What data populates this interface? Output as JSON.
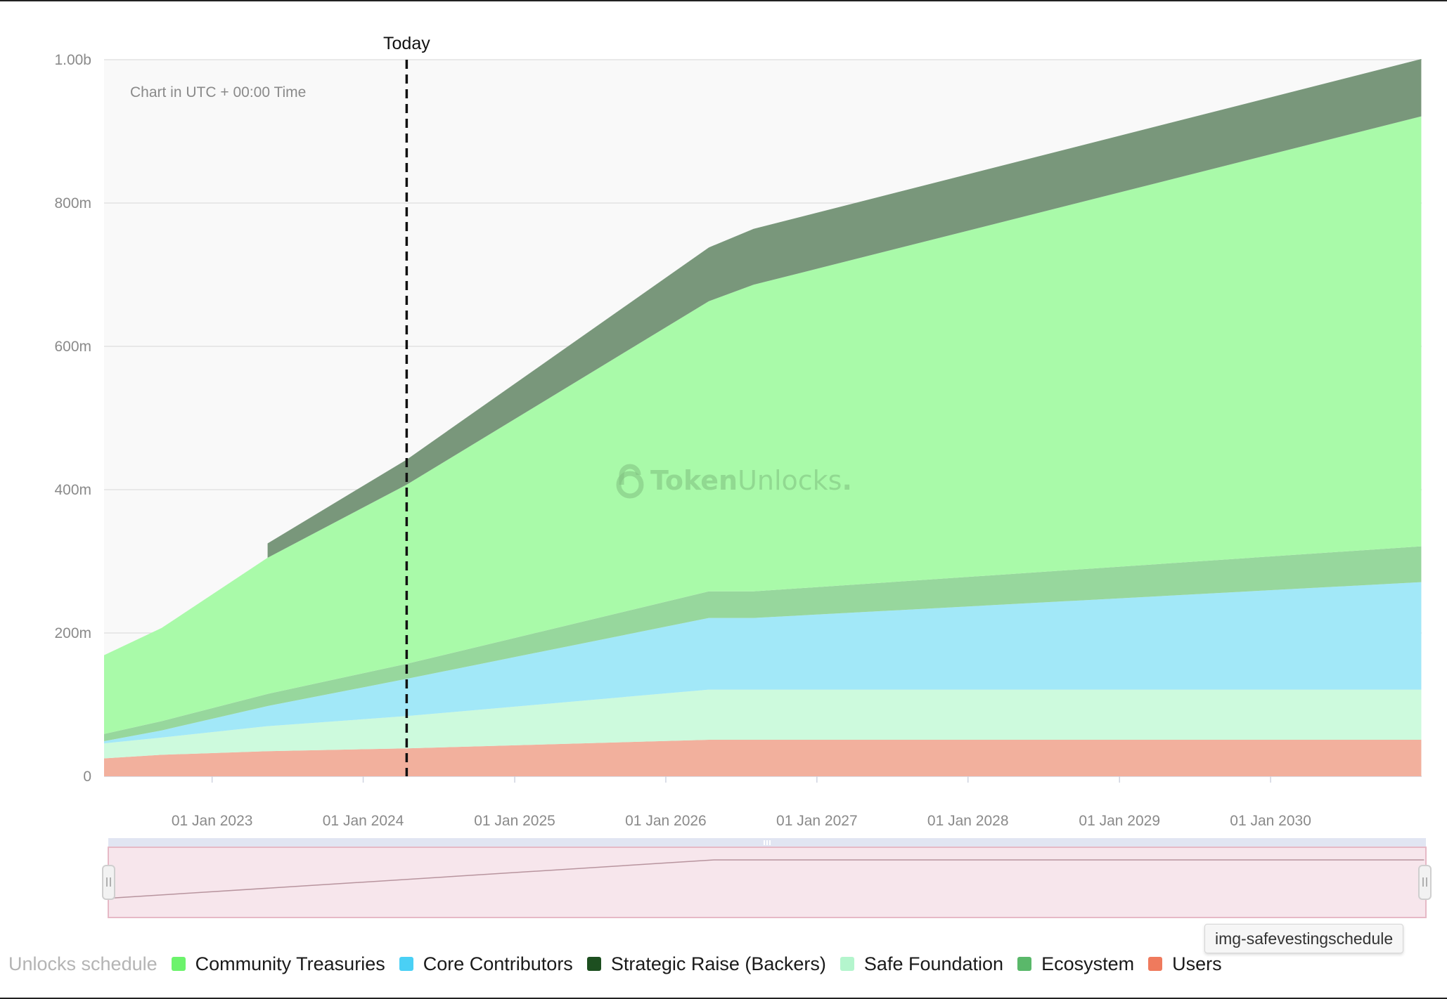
{
  "chart_data": {
    "type": "area",
    "stacked": true,
    "title": "",
    "note": "Chart in UTC + 00:00 Time",
    "watermark": "TokenUnlocks.",
    "watermark_parts": [
      "Token",
      "Unlocks",
      "."
    ],
    "marker": {
      "label": "Today",
      "date": "2024-04-15"
    },
    "xlim": [
      "2022-04-15",
      "2031-01-01"
    ],
    "ylim": [
      0,
      1000000000
    ],
    "yticks": [
      {
        "value": 0,
        "label": "0"
      },
      {
        "value": 200000000,
        "label": "200m"
      },
      {
        "value": 400000000,
        "label": "400m"
      },
      {
        "value": 600000000,
        "label": "600m"
      },
      {
        "value": 800000000,
        "label": "800m"
      },
      {
        "value": 1000000000,
        "label": "1.00b"
      }
    ],
    "xticks": [
      {
        "date": "2023-01-01",
        "label": "01 Jan 2023"
      },
      {
        "date": "2024-01-01",
        "label": "01 Jan 2024"
      },
      {
        "date": "2025-01-01",
        "label": "01 Jan 2025"
      },
      {
        "date": "2026-01-01",
        "label": "01 Jan 2026"
      },
      {
        "date": "2027-01-01",
        "label": "01 Jan 2027"
      },
      {
        "date": "2028-01-01",
        "label": "01 Jan 2028"
      },
      {
        "date": "2029-01-01",
        "label": "01 Jan 2029"
      },
      {
        "date": "2030-01-01",
        "label": "01 Jan 2030"
      }
    ],
    "grid": true,
    "legend_title": "Unlocks schedule",
    "legend_position": "bottom",
    "dates": [
      "2022-04-15",
      "2022-09-01",
      "2023-05-15",
      "2024-04-15",
      "2026-04-15",
      "2026-08-01",
      "2030-12-31"
    ],
    "series": [
      {
        "name": "Users",
        "color": "#f2b09d",
        "swatch": "#ef7a5d",
        "values": [
          25000000,
          30000000,
          35000000,
          39000000,
          51000000,
          51000000,
          51000000
        ]
      },
      {
        "name": "Safe Foundation",
        "color": "#cdfadd",
        "swatch": "#b4f5cd",
        "values": [
          21000000,
          24000000,
          35000000,
          45000000,
          70000000,
          70000000,
          70000000
        ]
      },
      {
        "name": "Core Contributors",
        "color": "#a2e8f8",
        "swatch": "#4ad0f5",
        "values": [
          3000000,
          10000000,
          28000000,
          52000000,
          100000000,
          100000000,
          150000000
        ]
      },
      {
        "name": "Ecosystem",
        "color": "#97d79d",
        "swatch": "#5ab86a",
        "values": [
          10000000,
          13000000,
          17000000,
          21000000,
          37000000,
          37000000,
          50000000
        ]
      },
      {
        "name": "Community Treasuries",
        "color": "#a9faa9",
        "swatch": "#6cf36c",
        "values": [
          110000000,
          130000000,
          190000000,
          250000000,
          405000000,
          428000000,
          600000000
        ]
      },
      {
        "name": "Strategic Raise (Backers)",
        "color": "#79977b",
        "swatch": "#1d4f20",
        "values": [
          0,
          0,
          20000000,
          35000000,
          75000000,
          78000000,
          80000000
        ]
      }
    ],
    "navigator": {
      "dates": [
        "2022-04-15",
        "2026-04-15",
        "2030-12-31"
      ],
      "values": [
        0.15,
        1.0,
        1.0
      ]
    }
  },
  "legend": {
    "title": "Unlocks schedule",
    "items": [
      {
        "label": "Community Treasuries",
        "color": "#6cf36c"
      },
      {
        "label": "Core Contributors",
        "color": "#4ad0f5"
      },
      {
        "label": "Strategic Raise (Backers)",
        "color": "#1d4f20"
      },
      {
        "label": "Safe Foundation",
        "color": "#b4f5cd"
      },
      {
        "label": "Ecosystem",
        "color": "#5ab86a"
      },
      {
        "label": "Users",
        "color": "#ef7a5d"
      }
    ]
  },
  "tooltip": {
    "text": "img-safevestingschedule"
  }
}
